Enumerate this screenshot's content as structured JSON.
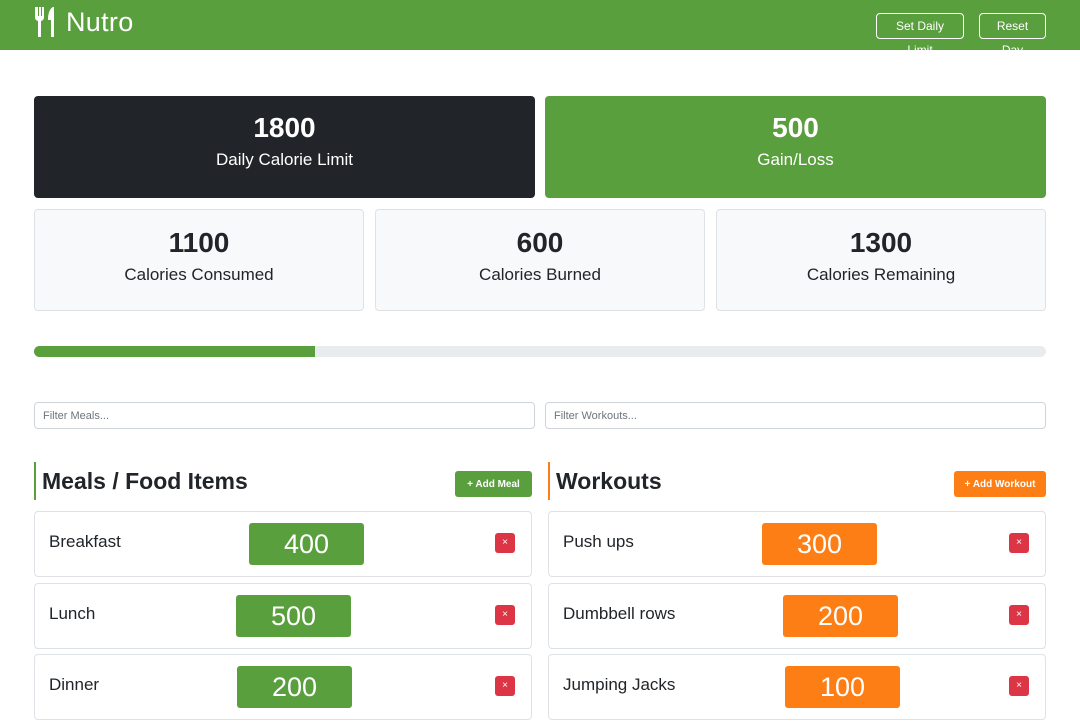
{
  "navbar": {
    "brand": "Nutro",
    "brand_icon": "utensils-icon",
    "set_limit_label": "Set Daily Limit",
    "reset_label": "Reset Day"
  },
  "stats": {
    "daily_limit": {
      "value": "1800",
      "label": "Daily Calorie Limit"
    },
    "gain_loss": {
      "value": "500",
      "label": "Gain/Loss"
    },
    "consumed": {
      "value": "1100",
      "label": "Calories Consumed"
    },
    "burned": {
      "value": "600",
      "label": "Calories Burned"
    },
    "remaining": {
      "value": "1300",
      "label": "Calories Remaining"
    }
  },
  "progress": {
    "percent": 27.8
  },
  "filters": {
    "meals_placeholder": "Filter Meals...",
    "workouts_placeholder": "Filter Workouts..."
  },
  "meals": {
    "title": "Meals / Food Items",
    "add_label": "+ Add Meal",
    "items": [
      {
        "name": "Breakfast",
        "calories": "400"
      },
      {
        "name": "Lunch",
        "calories": "500"
      },
      {
        "name": "Dinner",
        "calories": "200"
      }
    ]
  },
  "workouts": {
    "title": "Workouts",
    "add_label": "+ Add Workout",
    "items": [
      {
        "name": "Push ups",
        "calories": "300"
      },
      {
        "name": "Dumbbell rows",
        "calories": "200"
      },
      {
        "name": "Jumping Jacks",
        "calories": "100"
      }
    ]
  },
  "delete_label": "×",
  "colors": {
    "primary": "#5a9f3d",
    "dark": "#212529",
    "accent": "#fd7e14",
    "danger": "#dc3545"
  }
}
